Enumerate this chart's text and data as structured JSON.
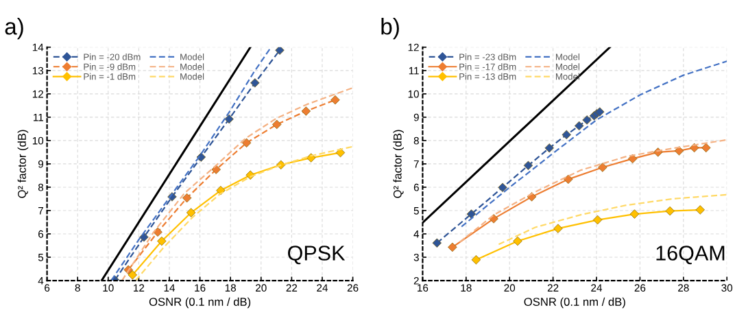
{
  "chart_data": [
    {
      "type": "line",
      "title": "a)",
      "xlabel": "OSNR (0.1 nm / dB)",
      "ylabel": "Q² factor (dB)",
      "xlim": [
        6,
        26
      ],
      "ylim": [
        4,
        14
      ],
      "xticks": [
        6,
        8,
        10,
        12,
        14,
        16,
        18,
        20,
        22,
        24,
        26
      ],
      "yticks": [
        4,
        5,
        6,
        7,
        8,
        9,
        10,
        11,
        12,
        13,
        14
      ],
      "grid": true,
      "legend": "top left",
      "annotations": [
        "QPSK"
      ],
      "series": [
        {
          "name": "Pin = -20 dBm",
          "color": "#2f5597",
          "marker": "diamond",
          "line_style": "dashed",
          "x": [
            10.44,
            12.34,
            14.18,
            16.08,
            17.91,
            19.6,
            21.22
          ],
          "values": [
            4.02,
            5.86,
            7.59,
            9.29,
            10.92,
            12.47,
            13.87
          ]
        },
        {
          "name": "Pin = -9 dBm",
          "color": "#ed7d31",
          "marker": "diamond",
          "line_style": "dashed",
          "x": [
            11.32,
            13.24,
            15.15,
            17.06,
            19.05,
            21.03,
            22.94,
            24.85
          ],
          "values": [
            4.46,
            6.08,
            7.54,
            8.76,
            9.9,
            10.69,
            11.26,
            11.74
          ]
        },
        {
          "name": "Pin = -1 dBm",
          "color": "#ffc000",
          "marker": "diamond",
          "line_style": "solid",
          "x": [
            11.59,
            13.5,
            15.42,
            17.36,
            19.3,
            21.3,
            23.27,
            25.19
          ],
          "values": [
            4.24,
            5.69,
            6.91,
            7.86,
            8.52,
            8.96,
            9.26,
            9.48
          ]
        },
        {
          "name": "Model",
          "color": "#4472c4",
          "marker": "none",
          "line_style": "dashed",
          "x": [
            10.2,
            12,
            14,
            16,
            18,
            19.5,
            20.65
          ],
          "values": [
            4,
            5.75,
            7.55,
            9.35,
            11.3,
            12.9,
            14
          ]
        },
        {
          "name": "Model",
          "color": "#f4b183",
          "marker": "none",
          "line_style": "dashed",
          "x": [
            10.9,
            12,
            13,
            15,
            17,
            19,
            21,
            23,
            26
          ],
          "values": [
            4,
            5.1,
            6.1,
            7.75,
            8.9,
            10.1,
            10.95,
            11.55,
            12.26
          ]
        },
        {
          "name": "Model",
          "color": "#ffd966",
          "marker": "none",
          "line_style": "dashed",
          "x": [
            11.8,
            13.6,
            15.5,
            17.3,
            19.3,
            21.3,
            23.3,
            26
          ],
          "values": [
            4,
            5.4,
            6.7,
            7.7,
            8.45,
            8.95,
            9.35,
            9.74
          ]
        },
        {
          "color": "#000000",
          "marker": "none",
          "line_style": "solid",
          "x": [
            9.57,
            19.3
          ],
          "values": [
            4,
            14
          ]
        }
      ]
    },
    {
      "type": "line",
      "title": "b)",
      "xlabel": "OSNR (0.1 nm / dB)",
      "ylabel": "Q² factor (dB)",
      "xlim": [
        16,
        30
      ],
      "ylim": [
        2,
        12
      ],
      "xticks": [
        16,
        18,
        20,
        22,
        24,
        26,
        28,
        30
      ],
      "yticks": [
        2,
        3,
        4,
        5,
        6,
        7,
        8,
        9,
        10,
        11,
        12
      ],
      "grid": true,
      "legend": "top left",
      "annotations": [
        "16QAM"
      ],
      "series": [
        {
          "name": "Pin = -23 dBm",
          "color": "#2f5597",
          "marker": "diamond",
          "line_style": "dashed",
          "x": [
            16.66,
            18.24,
            19.68,
            20.86,
            21.83,
            22.62,
            23.2,
            23.56,
            23.89,
            24.01,
            24.15
          ],
          "values": [
            3.61,
            4.85,
            5.99,
            6.93,
            7.68,
            8.25,
            8.63,
            8.88,
            9.06,
            9.15,
            9.23
          ]
        },
        {
          "name": "Pin = -17 dBm",
          "color": "#ed7d31",
          "marker": "diamond",
          "line_style": "solid",
          "x": [
            17.37,
            19.27,
            21.02,
            22.7,
            24.28,
            25.66,
            26.83,
            27.8,
            28.5,
            29.04
          ],
          "values": [
            3.43,
            4.65,
            5.59,
            6.34,
            6.85,
            7.22,
            7.5,
            7.56,
            7.69,
            7.69
          ]
        },
        {
          "name": "Pin = -13 dBm",
          "color": "#ffc000",
          "marker": "diamond",
          "line_style": "solid",
          "x": [
            18.46,
            20.37,
            22.23,
            24.05,
            25.75,
            27.38,
            28.77
          ],
          "values": [
            2.89,
            3.69,
            4.23,
            4.6,
            4.85,
            4.98,
            5.03
          ]
        },
        {
          "name": "Model",
          "color": "#4472c4",
          "marker": "none",
          "line_style": "dashed",
          "x": [
            17.79,
            19.81,
            22.02,
            24.01,
            26.01,
            28,
            30
          ],
          "values": [
            4.31,
            5.85,
            7.47,
            8.89,
            9.96,
            10.8,
            11.4
          ]
        },
        {
          "name": "Model",
          "color": "#f4b183",
          "marker": "none",
          "line_style": "dashed",
          "x": [
            17.71,
            19.29,
            21.18,
            23.28,
            25.38,
            27.48,
            30
          ],
          "values": [
            3.65,
            4.82,
            5.8,
            6.73,
            7.32,
            7.66,
            8.03
          ]
        },
        {
          "name": "Model",
          "color": "#ffd966",
          "marker": "none",
          "line_style": "dashed",
          "x": [
            19.5,
            21.18,
            23.28,
            25.38,
            27.48,
            30
          ],
          "values": [
            3.55,
            4.28,
            4.82,
            5.23,
            5.5,
            5.68
          ]
        },
        {
          "color": "#000000",
          "marker": "none",
          "line_style": "solid",
          "x": [
            16,
            24.62
          ],
          "values": [
            4.48,
            12
          ]
        }
      ]
    }
  ]
}
